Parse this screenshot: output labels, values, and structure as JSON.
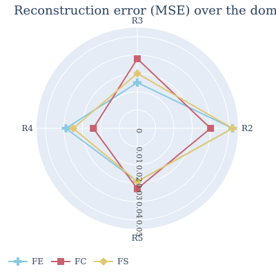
{
  "chart_data": {
    "type": "radar",
    "title": "Reconstruction error (MSE) over the domains",
    "axes": [
      "R2",
      "R3",
      "R4",
      "R5"
    ],
    "radial_range": [
      0,
      0.055
    ],
    "radial_ticks": [
      0,
      0.01,
      0.02,
      0.03,
      0.04,
      0.05
    ],
    "grid": true,
    "legend_position": "bottom-left",
    "series": [
      {
        "name": "FE",
        "color": "#87c9e3",
        "marker": "cross",
        "values": [
          0.052,
          0.025,
          0.039,
          0.029
        ]
      },
      {
        "name": "FC",
        "color": "#c8616f",
        "marker": "square",
        "values": [
          0.04,
          0.038,
          0.024,
          0.033
        ]
      },
      {
        "name": "FS",
        "color": "#e0c872",
        "marker": "diamond",
        "values": [
          0.052,
          0.03,
          0.035,
          0.029
        ]
      }
    ]
  }
}
